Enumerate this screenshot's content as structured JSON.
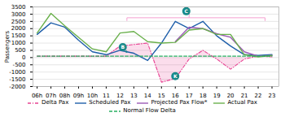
{
  "chart_data": {
    "type": "line",
    "ylabel": "Passengers",
    "x": [
      6,
      7,
      8,
      9,
      10,
      11,
      12,
      13,
      14,
      15,
      16,
      17,
      18,
      19,
      20,
      21,
      22,
      23
    ],
    "series": [
      {
        "name": "Delta Pax",
        "color": "#e84393",
        "line_style": "dashdot",
        "type": "area",
        "values": [
          100,
          100,
          100,
          100,
          100,
          100,
          800,
          900,
          1000,
          -1700,
          -1450,
          -100,
          500,
          -100,
          -800,
          -100,
          100,
          50
        ]
      },
      {
        "name": "Scheduled Pax",
        "color": "#1f5faa",
        "line_style": "solid",
        "values": [
          1600,
          2400,
          2100,
          1200,
          400,
          200,
          500,
          300,
          -200,
          1000,
          2500,
          2000,
          2500,
          1500,
          800,
          200,
          150,
          200
        ]
      },
      {
        "name": "Projected Pax Flow*",
        "color": "#9b59b6",
        "line_style": "solid",
        "values": [
          null,
          null,
          null,
          null,
          null,
          null,
          null,
          null,
          null,
          null,
          1100,
          2100,
          2000,
          1650,
          1400,
          400,
          100,
          150
        ]
      },
      {
        "name": "Actual Pax",
        "color": "#6ab04c",
        "line_style": "solid",
        "values": [
          1700,
          3050,
          2200,
          1400,
          600,
          400,
          1700,
          1800,
          1100,
          1000,
          1050,
          1900,
          2000,
          1600,
          1600,
          200,
          50,
          150
        ]
      },
      {
        "name": "Normal Flow Delta",
        "color": "#27ae60",
        "line_style": "dashed",
        "values": [
          100,
          100,
          100,
          100,
          100,
          100,
          100,
          100,
          100,
          100,
          100,
          100,
          100,
          100,
          100,
          100,
          100,
          100
        ]
      }
    ],
    "xlim": [
      5.7,
      23.5
    ],
    "xticks": [
      {
        "value": 6,
        "label": "06h"
      },
      {
        "value": 7,
        "label": "07h"
      },
      {
        "value": 8,
        "label": "08h"
      },
      {
        "value": 9,
        "label": "09h"
      },
      {
        "value": 10,
        "label": "10h"
      },
      11,
      12,
      13,
      14,
      15,
      16,
      17,
      18,
      19,
      20,
      21,
      22,
      23
    ],
    "ylim": [
      -2000,
      3500
    ],
    "yticks": [
      -2000,
      -1500,
      -1000,
      -500,
      0,
      500,
      1000,
      1500,
      2000,
      2500,
      3000,
      3500
    ],
    "grid": true,
    "legend": "bottom",
    "annotations": [
      {
        "text": "B",
        "x": 12.2,
        "y": 720,
        "color": "#1a8a8a",
        "arrow_to": [
          12.5,
          350
        ]
      },
      {
        "text": "K",
        "x": 16.0,
        "y": -1280,
        "color": "#1a8a8a"
      },
      {
        "text": "C",
        "x": 16.8,
        "y": 3200,
        "color": "#1a8a8a"
      }
    ],
    "bracket": {
      "x": [
        12.5,
        22.5
      ],
      "y": 2750,
      "drop_y": 2530,
      "center_x": 17.0,
      "tip_y": 3150,
      "color": "#f5a0d0"
    }
  }
}
